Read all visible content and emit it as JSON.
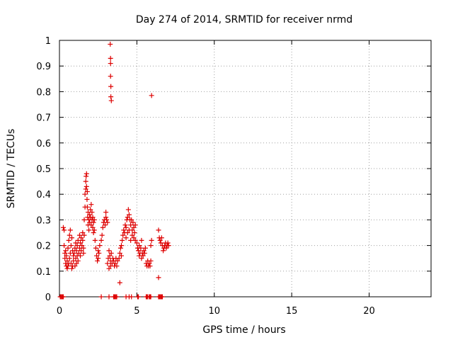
{
  "chart_data": {
    "type": "scatter",
    "title": "Day 274 of 2014, SRMTID for receiver nrmd",
    "xlabel": "GPS time / hours",
    "ylabel": "SRMTID / TECUs",
    "xlim": [
      0,
      24
    ],
    "ylim": [
      0,
      1
    ],
    "x_ticks": [
      0,
      5,
      10,
      15,
      20
    ],
    "x_tick_labels": [
      "0",
      "5",
      "10",
      "15",
      "20"
    ],
    "y_ticks": [
      0,
      0.1,
      0.2,
      0.3,
      0.4,
      0.5,
      0.6,
      0.7,
      0.8,
      0.9,
      1
    ],
    "y_tick_labels": [
      "0",
      "0.1",
      "0.2",
      "0.3",
      "0.4",
      "0.5",
      "0.6",
      "0.7",
      "0.8",
      "0.9",
      "1"
    ],
    "grid": true,
    "marker": "+",
    "color": "#dd0000",
    "series": [
      {
        "name": "SRMTID",
        "points": [
          [
            0.05,
            0
          ],
          [
            0.1,
            0
          ],
          [
            0.15,
            0
          ],
          [
            0.2,
            0
          ],
          [
            0.25,
            0
          ],
          [
            0.25,
            0.27
          ],
          [
            0.3,
            0.26
          ],
          [
            0.3,
            0.2
          ],
          [
            0.35,
            0.17
          ],
          [
            0.35,
            0.15
          ],
          [
            0.4,
            0.13
          ],
          [
            0.4,
            0.18
          ],
          [
            0.45,
            0.12
          ],
          [
            0.45,
            0.16
          ],
          [
            0.5,
            0.11
          ],
          [
            0.5,
            0.14
          ],
          [
            0.55,
            0.12
          ],
          [
            0.55,
            0.19
          ],
          [
            0.6,
            0.13
          ],
          [
            0.6,
            0.22
          ],
          [
            0.65,
            0.15
          ],
          [
            0.65,
            0.24
          ],
          [
            0.7,
            0.17
          ],
          [
            0.7,
            0.26
          ],
          [
            0.75,
            0.2
          ],
          [
            0.75,
            0.13
          ],
          [
            0.8,
            0.23
          ],
          [
            0.8,
            0.11
          ],
          [
            0.85,
            0.12
          ],
          [
            0.85,
            0.18
          ],
          [
            0.9,
            0.14
          ],
          [
            0.9,
            0.16
          ],
          [
            0.95,
            0.17
          ],
          [
            1.0,
            0.19
          ],
          [
            1.0,
            0.12
          ],
          [
            1.05,
            0.15
          ],
          [
            1.05,
            0.21
          ],
          [
            1.1,
            0.18
          ],
          [
            1.1,
            0.13
          ],
          [
            1.15,
            0.2
          ],
          [
            1.15,
            0.16
          ],
          [
            1.2,
            0.22
          ],
          [
            1.2,
            0.14
          ],
          [
            1.25,
            0.17
          ],
          [
            1.3,
            0.19
          ],
          [
            1.3,
            0.24
          ],
          [
            1.35,
            0.21
          ],
          [
            1.35,
            0.16
          ],
          [
            1.4,
            0.23
          ],
          [
            1.4,
            0.18
          ],
          [
            1.45,
            0.2
          ],
          [
            1.5,
            0.22
          ],
          [
            1.5,
            0.25
          ],
          [
            1.55,
            0.17
          ],
          [
            1.55,
            0.19
          ],
          [
            1.6,
            0.24
          ],
          [
            1.6,
            0.3
          ],
          [
            1.65,
            0.35
          ],
          [
            1.65,
            0.4
          ],
          [
            1.7,
            0.42
          ],
          [
            1.7,
            0.45
          ],
          [
            1.72,
            0.47
          ],
          [
            1.75,
            0.48
          ],
          [
            1.75,
            0.43
          ],
          [
            1.78,
            0.38
          ],
          [
            1.8,
            0.35
          ],
          [
            1.8,
            0.41
          ],
          [
            1.82,
            0.31
          ],
          [
            1.85,
            0.28
          ],
          [
            1.85,
            0.33
          ],
          [
            1.9,
            0.3
          ],
          [
            1.9,
            0.26
          ],
          [
            1.95,
            0.32
          ],
          [
            1.95,
            0.29
          ],
          [
            2.0,
            0.34
          ],
          [
            2.0,
            0.31
          ],
          [
            2.05,
            0.36
          ],
          [
            2.05,
            0.28
          ],
          [
            2.1,
            0.33
          ],
          [
            2.1,
            0.3
          ],
          [
            2.15,
            0.31
          ],
          [
            2.15,
            0.27
          ],
          [
            2.2,
            0.29
          ],
          [
            2.2,
            0.25
          ],
          [
            2.25,
            0.26
          ],
          [
            2.25,
            0.3
          ],
          [
            2.3,
            0.22
          ],
          [
            2.35,
            0.19
          ],
          [
            2.4,
            0.16
          ],
          [
            2.45,
            0.14
          ],
          [
            2.5,
            0.15
          ],
          [
            2.5,
            0.18
          ],
          [
            2.55,
            0.17
          ],
          [
            2.6,
            0.2
          ],
          [
            2.7,
            0.22
          ],
          [
            2.75,
            0.24
          ],
          [
            2.8,
            0.27
          ],
          [
            2.85,
            0.29
          ],
          [
            2.9,
            0.3
          ],
          [
            2.95,
            0.28
          ],
          [
            3.0,
            0.31
          ],
          [
            3.0,
            0.33
          ],
          [
            3.05,
            0.3
          ],
          [
            3.1,
            0.29
          ],
          [
            2.7,
            0
          ],
          [
            3.2,
            0
          ],
          [
            3.5,
            0
          ],
          [
            3.55,
            0
          ],
          [
            3.6,
            0
          ],
          [
            3.65,
            0
          ],
          [
            3.7,
            0
          ],
          [
            3.1,
            0.13
          ],
          [
            3.15,
            0.15
          ],
          [
            3.2,
            0.18
          ],
          [
            3.2,
            0.11
          ],
          [
            3.25,
            0.16
          ],
          [
            3.3,
            0.14
          ],
          [
            3.3,
            0.12
          ],
          [
            3.35,
            0.17
          ],
          [
            3.4,
            0.13
          ],
          [
            3.45,
            0.15
          ],
          [
            3.5,
            0.14
          ],
          [
            3.55,
            0.12
          ],
          [
            3.6,
            0.13
          ],
          [
            3.65,
            0.15
          ],
          [
            3.7,
            0.12
          ],
          [
            3.75,
            0.14
          ],
          [
            3.28,
            0.985
          ],
          [
            3.3,
            0.93
          ],
          [
            3.3,
            0.91
          ],
          [
            3.3,
            0.86
          ],
          [
            3.32,
            0.82
          ],
          [
            3.32,
            0.78
          ],
          [
            3.35,
            0.765
          ],
          [
            3.9,
            0.055
          ],
          [
            3.85,
            0.15
          ],
          [
            3.9,
            0.17
          ],
          [
            3.95,
            0.19
          ],
          [
            4.0,
            0.16
          ],
          [
            4.0,
            0.2
          ],
          [
            4.05,
            0.22
          ],
          [
            4.1,
            0.24
          ],
          [
            4.15,
            0.26
          ],
          [
            4.2,
            0.25
          ],
          [
            4.25,
            0.28
          ],
          [
            4.3,
            0.27
          ],
          [
            4.3,
            0.23
          ],
          [
            4.35,
            0.3
          ],
          [
            4.4,
            0.31
          ],
          [
            4.4,
            0.25
          ],
          [
            4.45,
            0.34
          ],
          [
            4.5,
            0.32
          ],
          [
            4.5,
            0.26
          ],
          [
            4.55,
            0.3
          ],
          [
            4.6,
            0.28
          ],
          [
            4.6,
            0.22
          ],
          [
            4.65,
            0.3
          ],
          [
            4.7,
            0.26
          ],
          [
            4.7,
            0.24
          ],
          [
            4.75,
            0.29
          ],
          [
            4.8,
            0.27
          ],
          [
            4.8,
            0.23
          ],
          [
            4.85,
            0.25
          ],
          [
            4.9,
            0.22
          ],
          [
            4.9,
            0.28
          ],
          [
            4.3,
            0
          ],
          [
            4.5,
            0
          ],
          [
            4.65,
            0
          ],
          [
            5.05,
            0
          ],
          [
            5.1,
            0
          ],
          [
            5.6,
            0
          ],
          [
            5.65,
            0
          ],
          [
            5.7,
            0
          ],
          [
            5.8,
            0
          ],
          [
            5.85,
            0
          ],
          [
            5.9,
            0
          ],
          [
            6.4,
            0
          ],
          [
            6.45,
            0
          ],
          [
            6.5,
            0
          ],
          [
            6.55,
            0
          ],
          [
            6.6,
            0
          ],
          [
            6.65,
            0
          ],
          [
            5.0,
            0.21
          ],
          [
            5.05,
            0.19
          ],
          [
            5.1,
            0.18
          ],
          [
            5.15,
            0.2
          ],
          [
            5.15,
            0.16
          ],
          [
            5.2,
            0.17
          ],
          [
            5.25,
            0.19
          ],
          [
            5.3,
            0.22
          ],
          [
            5.3,
            0.15
          ],
          [
            5.35,
            0.17
          ],
          [
            5.4,
            0.16
          ],
          [
            5.45,
            0.18
          ],
          [
            5.5,
            0.17
          ],
          [
            5.55,
            0.19
          ],
          [
            5.6,
            0.13
          ],
          [
            5.65,
            0.12
          ],
          [
            5.7,
            0.14
          ],
          [
            5.75,
            0.12
          ],
          [
            5.8,
            0.13
          ],
          [
            5.85,
            0.12
          ],
          [
            5.9,
            0.14
          ],
          [
            5.9,
            0.2
          ],
          [
            5.95,
            0.22
          ],
          [
            5.95,
            0.785
          ],
          [
            6.4,
            0.075
          ],
          [
            6.4,
            0.26
          ],
          [
            6.45,
            0.23
          ],
          [
            6.5,
            0.22
          ],
          [
            6.55,
            0.21
          ],
          [
            6.6,
            0.23
          ],
          [
            6.65,
            0.2
          ],
          [
            6.7,
            0.18
          ],
          [
            6.75,
            0.19
          ],
          [
            6.8,
            0.2
          ],
          [
            6.85,
            0.21
          ],
          [
            6.9,
            0.19
          ],
          [
            6.95,
            0.2
          ],
          [
            7.0,
            0.21
          ],
          [
            7.05,
            0.2
          ]
        ]
      }
    ]
  }
}
